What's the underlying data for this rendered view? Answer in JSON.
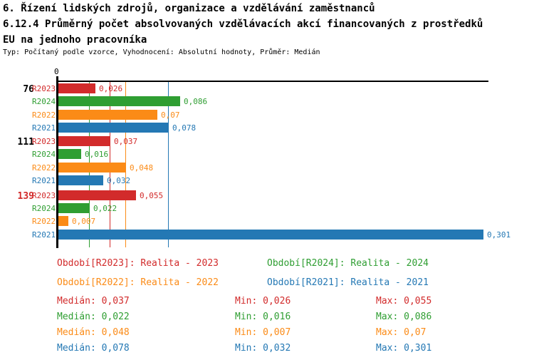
{
  "header": {
    "title_line1": "6. Řízení lidských zdrojů, organizace a vzdělávání zaměstnanců",
    "title_line2": "6.12.4 Průměrný počet absolvovaných vzdělávacích akcí financovaných z prostředků",
    "title_line3": "EU na jednoho pracovníka",
    "meta_line": "Typ: Počítaný podle vzorce, Vyhodnocení: Absolutní hodnoty, Průměr: Medián"
  },
  "colors": {
    "R2023": "#d22b2b",
    "R2024": "#2f9e32",
    "R2022": "#fb8b17",
    "R2021": "#2478b4",
    "axis": "#000000"
  },
  "chart_data": {
    "type": "bar",
    "orientation": "horizontal",
    "title": "6.12.4 Průměrný počet absolvovaných vzdělávacích akcí financovaných z prostředků EU na jednoho pracovníka",
    "x_axis": {
      "zero_label": "0",
      "min": 0,
      "max_implied": 0.305,
      "grid": "median lines only"
    },
    "series_order": [
      "R2023",
      "R2024",
      "R2022",
      "R2021"
    ],
    "groups": [
      {
        "label": "76",
        "label_color": "#000000",
        "bars": [
          {
            "series": "R2023",
            "value": 0.026,
            "value_label": "0,026"
          },
          {
            "series": "R2024",
            "value": 0.086,
            "value_label": "0,086"
          },
          {
            "series": "R2022",
            "value": 0.07,
            "value_label": "0,07"
          },
          {
            "series": "R2021",
            "value": 0.078,
            "value_label": "0,078"
          }
        ]
      },
      {
        "label": "111",
        "label_color": "#000000",
        "bars": [
          {
            "series": "R2023",
            "value": 0.037,
            "value_label": "0,037"
          },
          {
            "series": "R2024",
            "value": 0.016,
            "value_label": "0,016"
          },
          {
            "series": "R2022",
            "value": 0.048,
            "value_label": "0,048"
          },
          {
            "series": "R2021",
            "value": 0.032,
            "value_label": "0,032"
          }
        ]
      },
      {
        "label": "139",
        "label_color": "#d22b2b",
        "bars": [
          {
            "series": "R2023",
            "value": 0.055,
            "value_label": "0,055"
          },
          {
            "series": "R2024",
            "value": 0.022,
            "value_label": "0,022"
          },
          {
            "series": "R2022",
            "value": 0.007,
            "value_label": "0,007"
          },
          {
            "series": "R2021",
            "value": 0.301,
            "value_label": "0,301"
          }
        ]
      }
    ],
    "median_lines": [
      {
        "series": "R2023",
        "value": 0.037
      },
      {
        "series": "R2024",
        "value": 0.022
      },
      {
        "series": "R2022",
        "value": 0.048
      },
      {
        "series": "R2021",
        "value": 0.078
      }
    ]
  },
  "legend": [
    {
      "series": "R2023",
      "text": "Období[R2023]: Realita - 2023"
    },
    {
      "series": "R2024",
      "text": "Období[R2024]: Realita - 2024"
    },
    {
      "series": "R2022",
      "text": "Období[R2022]: Realita - 2022"
    },
    {
      "series": "R2021",
      "text": "Období[R2021]: Realita - 2021"
    }
  ],
  "stats": [
    {
      "series": "R2023",
      "median": "Medián: 0,037",
      "min": "Min: 0,026",
      "max": "Max: 0,055"
    },
    {
      "series": "R2024",
      "median": "Medián: 0,022",
      "min": "Min: 0,016",
      "max": "Max: 0,086"
    },
    {
      "series": "R2022",
      "median": "Medián: 0,048",
      "min": "Min: 0,007",
      "max": "Max: 0,07"
    },
    {
      "series": "R2021",
      "median": "Medián: 0,078",
      "min": "Min: 0,032",
      "max": "Max: 0,301"
    }
  ]
}
